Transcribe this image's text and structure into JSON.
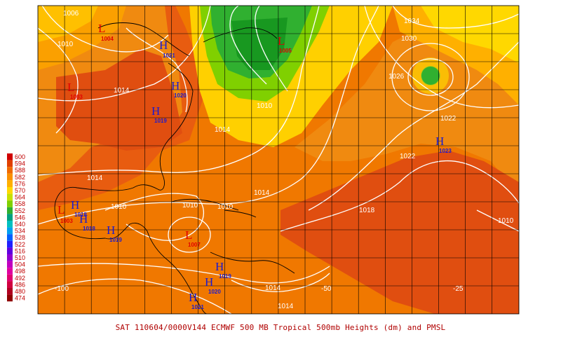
{
  "caption": "SAT 110604/0000V144  ECMWF  500 MB Tropical 500mb Heights (dm) and PMSL",
  "legend": {
    "levels": [
      "600",
      "594",
      "588",
      "582",
      "576",
      "570",
      "564",
      "558",
      "552",
      "546",
      "540",
      "534",
      "528",
      "522",
      "516",
      "510",
      "504",
      "498",
      "492",
      "486",
      "480",
      "474"
    ],
    "colors": [
      "#d00000",
      "#e04000",
      "#f06a00",
      "#fb9000",
      "#ffb000",
      "#ffd800",
      "#c8e000",
      "#80d000",
      "#30b030",
      "#00a080",
      "#00c0c0",
      "#00a0f0",
      "#0060ff",
      "#2020ff",
      "#6000e0",
      "#9000d0",
      "#c000c0",
      "#e000a0",
      "#e00070",
      "#d00040",
      "#b00020",
      "#900000"
    ]
  },
  "longitude_labels": [
    "-100",
    "-50",
    "-25"
  ],
  "pressure_centers": [
    {
      "type": "H",
      "value": "1021",
      "id": "h-ne-us"
    },
    {
      "type": "H",
      "value": "1020",
      "id": "h-va"
    },
    {
      "type": "H",
      "value": "1019",
      "id": "h-carolina"
    },
    {
      "type": "H",
      "value": "1023",
      "id": "h-atlantic"
    },
    {
      "type": "H",
      "value": "1018",
      "id": "h-gulf-1"
    },
    {
      "type": "H",
      "value": "1018",
      "id": "h-gulf-2"
    },
    {
      "type": "H",
      "value": "1019",
      "id": "h-yucatan"
    },
    {
      "type": "H",
      "value": "1019",
      "id": "h-hispaniola"
    },
    {
      "type": "H",
      "value": "1020",
      "id": "h-pr"
    },
    {
      "type": "H",
      "value": "1021",
      "id": "h-lesser"
    },
    {
      "type": "L",
      "value": "1004",
      "id": "l-canada"
    },
    {
      "type": "L",
      "value": "1003",
      "id": "l-labrador"
    },
    {
      "type": "L",
      "value": "1005",
      "id": "l-newfoundland"
    },
    {
      "type": "L",
      "value": "1007",
      "id": "l-caribbean"
    },
    {
      "type": "L",
      "value": "1003",
      "id": "l-mexico"
    }
  ],
  "isobar_labels": [
    {
      "text": "1014",
      "id": "iso-1014-us"
    },
    {
      "text": "1014",
      "id": "iso-1014-fl"
    },
    {
      "text": "1014",
      "id": "iso-1014-gulf"
    },
    {
      "text": "1014",
      "id": "iso-1014-carib"
    },
    {
      "text": "1010",
      "id": "iso-1010-atl"
    },
    {
      "text": "1010",
      "id": "iso-1010-gulf"
    },
    {
      "text": "1010",
      "id": "iso-1010-carib"
    },
    {
      "text": "1010",
      "id": "iso-1010-cuba"
    },
    {
      "text": "1018",
      "id": "iso-1018-atl"
    },
    {
      "text": "1022",
      "id": "iso-1022-a"
    },
    {
      "text": "1022",
      "id": "iso-1022-b"
    },
    {
      "text": "1026",
      "id": "iso-1026"
    },
    {
      "text": "1030",
      "id": "iso-1030"
    },
    {
      "text": "1034",
      "id": "iso-1034"
    },
    {
      "text": "1010",
      "id": "iso-1010-east"
    },
    {
      "text": "1014",
      "id": "iso-1014-south"
    },
    {
      "text": "1014",
      "id": "iso-1014-south2"
    },
    {
      "text": "1010",
      "id": "iso-1010-topleft"
    },
    {
      "text": "1006",
      "id": "iso-1006-topleft"
    }
  ]
}
